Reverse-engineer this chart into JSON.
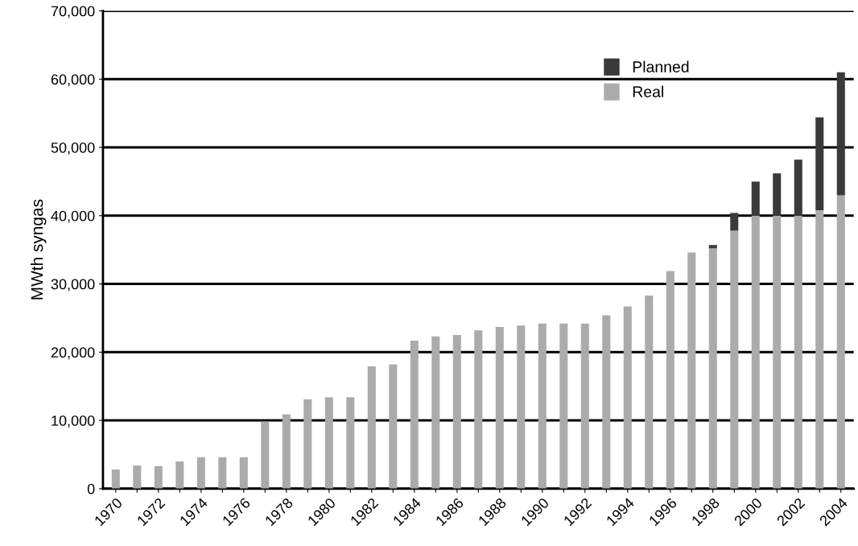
{
  "chart_data": {
    "type": "bar",
    "ylabel": "MWth syngas",
    "stacked": true,
    "categories": [
      "1970",
      null,
      "1972",
      null,
      "1974",
      null,
      "1976",
      null,
      "1978",
      null,
      "1980",
      null,
      "1982",
      null,
      "1984",
      null,
      "1986",
      null,
      "1988",
      null,
      "1990",
      null,
      "1992",
      null,
      "1994",
      null,
      "1996",
      null,
      "1998",
      null,
      "2000",
      null,
      "2002",
      null,
      "2004"
    ],
    "series": [
      {
        "name": "Real",
        "color": "#ababab",
        "values": [
          2800,
          3400,
          3300,
          4000,
          4600,
          4600,
          4600,
          9800,
          10900,
          13100,
          13400,
          13400,
          17900,
          18200,
          21700,
          22300,
          22500,
          23200,
          23700,
          23900,
          24200,
          24200,
          24200,
          25400,
          26700,
          28300,
          31900,
          34600,
          35200,
          37800,
          40000,
          40000,
          40000,
          40800,
          43000
        ]
      },
      {
        "name": "Planned",
        "color": "#3a3a3a",
        "values": [
          0,
          0,
          0,
          0,
          0,
          0,
          0,
          0,
          0,
          0,
          0,
          0,
          0,
          0,
          0,
          0,
          0,
          0,
          0,
          0,
          0,
          0,
          0,
          0,
          0,
          0,
          0,
          0,
          500,
          2600,
          5000,
          6200,
          8200,
          13600,
          18000
        ]
      }
    ],
    "ylim": [
      0,
      70000
    ],
    "yticks": [
      {
        "value": 0,
        "label": "0"
      },
      {
        "value": 10000,
        "label": "10,000"
      },
      {
        "value": 20000,
        "label": "20,000"
      },
      {
        "value": 30000,
        "label": "30,000"
      },
      {
        "value": 40000,
        "label": "40,000"
      },
      {
        "value": 50000,
        "label": "50,000"
      },
      {
        "value": 60000,
        "label": "60,000"
      },
      {
        "value": 70000,
        "label": "70,000"
      }
    ],
    "grid": "y",
    "legend": "top right"
  }
}
